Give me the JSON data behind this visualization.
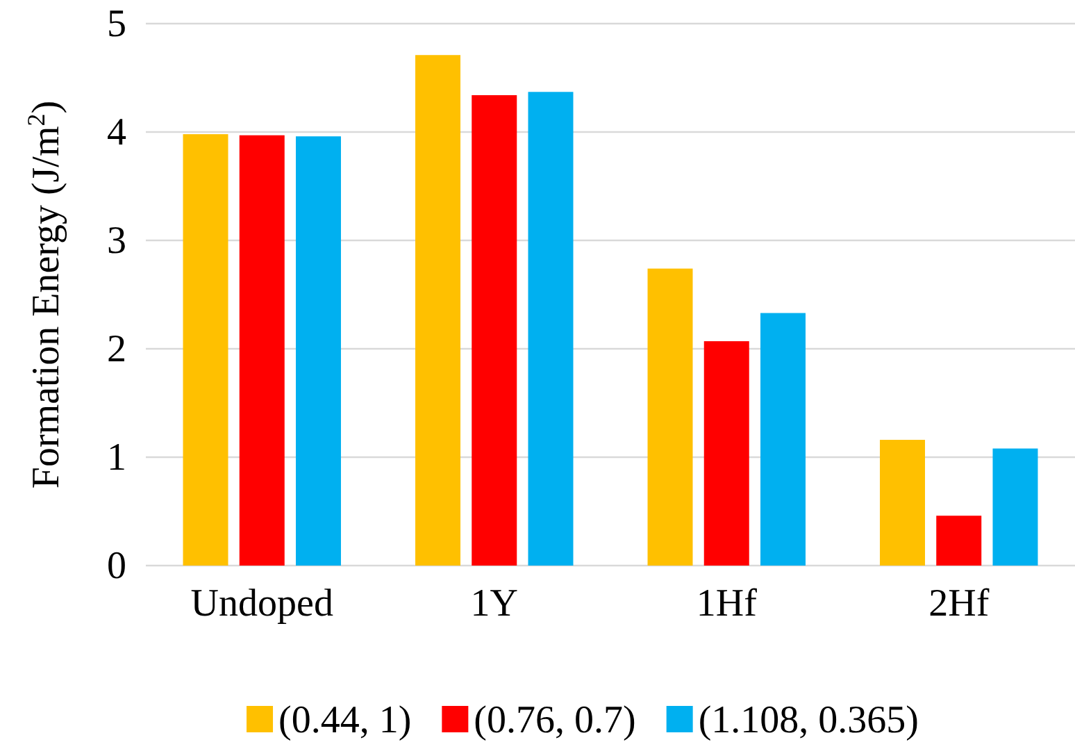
{
  "chart_data": {
    "type": "bar",
    "ylabel": "Formation Energy (J/m$^{2}$)",
    "categories": [
      "Undoped",
      "1Y",
      "1Hf",
      "2Hf"
    ],
    "series": [
      {
        "name": "(0.44, 1)",
        "color": "#ffc000",
        "values": [
          3.98,
          4.71,
          2.74,
          1.16
        ]
      },
      {
        "name": "(0.76, 0.7)",
        "color": "#ff0000",
        "values": [
          3.97,
          4.34,
          2.07,
          0.46
        ]
      },
      {
        "name": "(1.108, 0.365)",
        "color": "#00b0f0",
        "values": [
          3.96,
          4.37,
          2.33,
          1.08
        ]
      }
    ],
    "ylim": [
      0,
      5
    ],
    "yticks": [
      0,
      1,
      2,
      3,
      4,
      5
    ],
    "grid": "y",
    "legend": "bottom"
  }
}
